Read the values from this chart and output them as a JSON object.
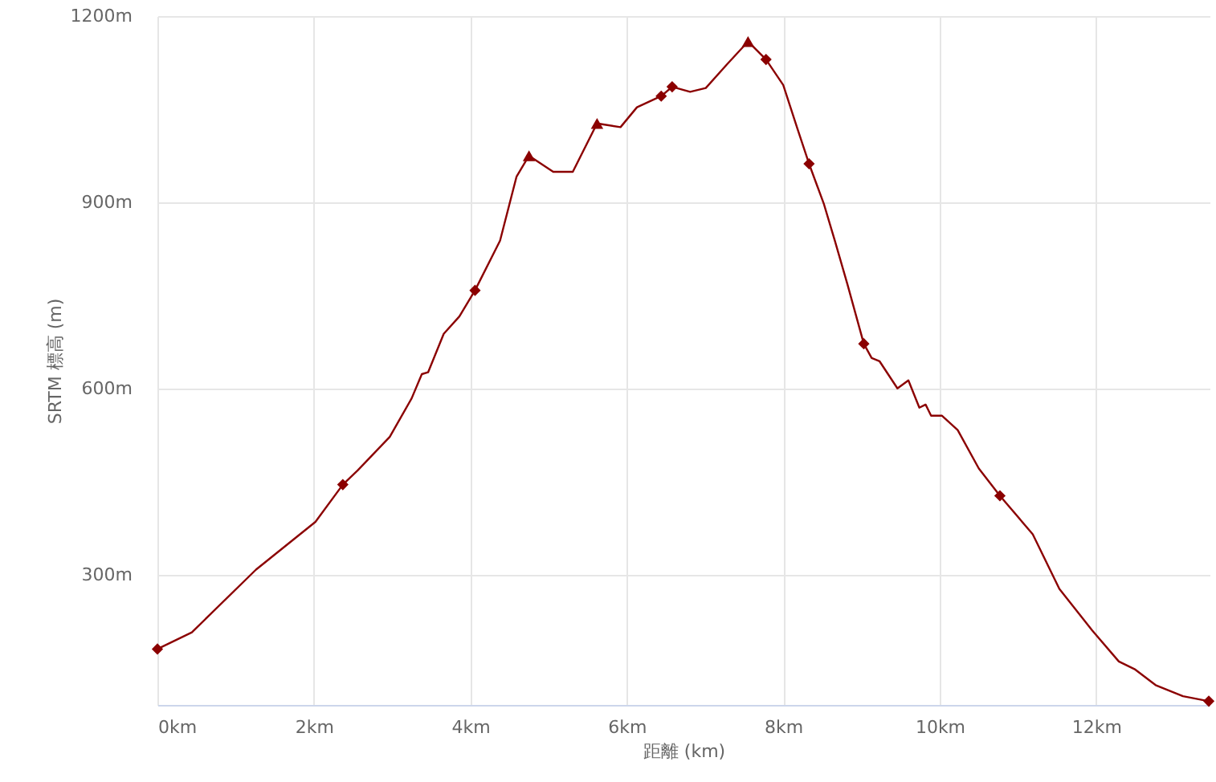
{
  "chart_data": {
    "type": "line",
    "xlabel": "距離 (km)",
    "ylabel": "SRTM 標高 (m)",
    "xlim": [
      0,
      13.45
    ],
    "ylim": [
      90,
      1200
    ],
    "xticks": [
      {
        "value": 0,
        "label": "0km"
      },
      {
        "value": 2,
        "label": "2km"
      },
      {
        "value": 4,
        "label": "4km"
      },
      {
        "value": 6,
        "label": "6km"
      },
      {
        "value": 8,
        "label": "8km"
      },
      {
        "value": 10,
        "label": "10km"
      },
      {
        "value": 12,
        "label": "12km"
      }
    ],
    "yticks": [
      {
        "value": 300,
        "label": "300m"
      },
      {
        "value": 600,
        "label": "600m"
      },
      {
        "value": 900,
        "label": "900m"
      },
      {
        "value": 1200,
        "label": "1200m"
      }
    ],
    "grid": true,
    "series": [
      {
        "type": "line",
        "color": "#8b0000",
        "marker": "none",
        "line_style": "solid",
        "x": [
          0,
          0.44,
          1.26,
          2.02,
          2.37,
          2.56,
          2.97,
          3.25,
          3.38,
          3.46,
          3.66,
          3.86,
          4.06,
          4.38,
          4.59,
          4.75,
          5.06,
          5.31,
          5.62,
          5.92,
          6.13,
          6.44,
          6.58,
          6.81,
          7.01,
          7.28,
          7.55,
          7.78,
          8.0,
          8.18,
          8.33,
          8.52,
          8.66,
          8.82,
          9.03,
          9.13,
          9.23,
          9.46,
          9.6,
          9.74,
          9.82,
          9.89,
          10.03,
          10.23,
          10.5,
          10.77,
          11.19,
          11.53,
          11.95,
          12.29,
          12.5,
          12.76,
          13.11,
          13.44
        ],
        "values": [
          180,
          207,
          308,
          385,
          445,
          468,
          522,
          584,
          623,
          626,
          688,
          716,
          758,
          838,
          941,
          975,
          949,
          949,
          1027,
          1021,
          1053,
          1071,
          1086,
          1078,
          1084,
          1122,
          1159,
          1130,
          1089,
          1019,
          962,
          897,
          838,
          768,
          672,
          649,
          644,
          600,
          613,
          569,
          574,
          556,
          556,
          533,
          471,
          427,
          365,
          277,
          210,
          160,
          147,
          122,
          104,
          96
        ]
      },
      {
        "type": "scatter",
        "color": "#8b0000",
        "marker": "diamond",
        "x": [
          0,
          2.37,
          4.06,
          6.44,
          6.58,
          7.78,
          8.33,
          9.03,
          10.77,
          13.44
        ],
        "values": [
          180,
          445,
          758,
          1071,
          1086,
          1130,
          962,
          672,
          427,
          96
        ]
      },
      {
        "type": "scatter",
        "color": "#8b0000",
        "marker": "triangle",
        "x": [
          4.75,
          5.62,
          7.55
        ],
        "values": [
          975,
          1027,
          1159
        ]
      }
    ]
  }
}
